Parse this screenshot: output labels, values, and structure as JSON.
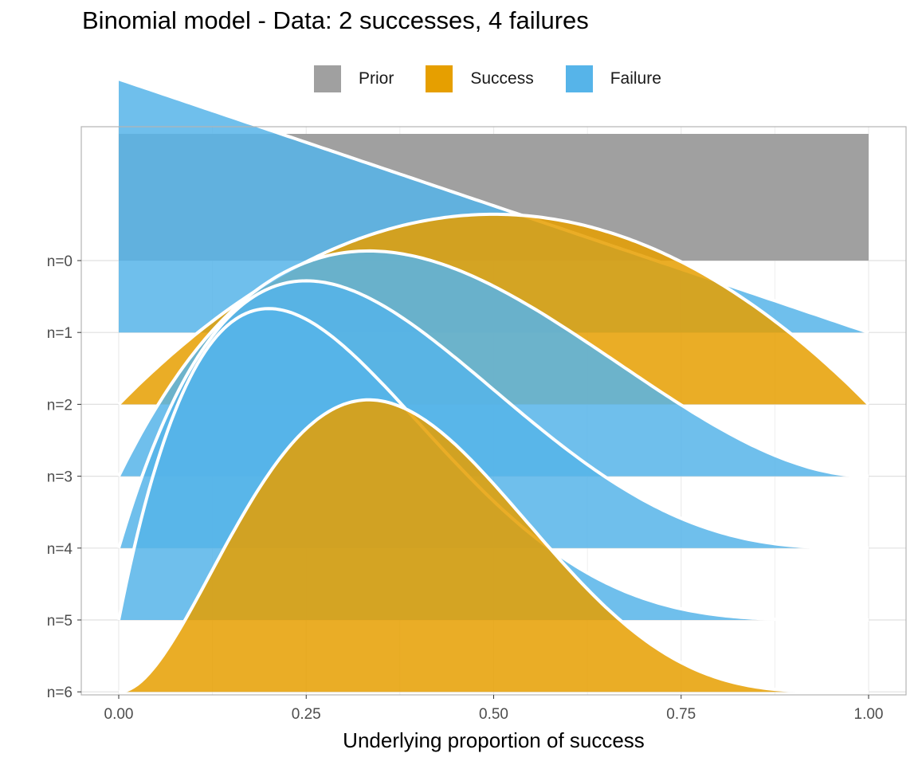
{
  "chart_data": {
    "type": "area",
    "subtype": "ridgeline",
    "title": "Binomial model - Data: 2 successes, 4 failures",
    "xlabel": "Underlying proportion of success",
    "ylabel": "",
    "xlim": [
      0,
      1
    ],
    "x_ticks": [
      "0.00",
      "0.25",
      "0.50",
      "0.75",
      "1.00"
    ],
    "x_tick_values": [
      0,
      0.25,
      0.5,
      0.75,
      1.0
    ],
    "y_categories": [
      "n=0",
      "n=1",
      "n=2",
      "n=3",
      "n=4",
      "n=5",
      "n=6"
    ],
    "legend": {
      "position": "top",
      "entries": [
        {
          "label": "Prior",
          "color": "#a0a0a0"
        },
        {
          "label": "Success",
          "color": "#e69f00"
        },
        {
          "label": "Failure",
          "color": "#56b4e9"
        }
      ]
    },
    "grid": true,
    "series": [
      {
        "row": "n=0",
        "outcome": "Prior",
        "successes": 0,
        "failures": 0,
        "peak_density": 1.0,
        "density_at_x0": 1.0,
        "density_at_x1": 1.0
      },
      {
        "row": "n=1",
        "outcome": "Failure",
        "successes": 0,
        "failures": 1,
        "peak_density": 2.0,
        "mode": 0.0
      },
      {
        "row": "n=2",
        "outcome": "Success",
        "successes": 1,
        "failures": 1,
        "peak_density": 1.5,
        "mode": 0.5
      },
      {
        "row": "n=3",
        "outcome": "Failure",
        "successes": 1,
        "failures": 2,
        "peak_density": 1.78,
        "mode": 0.333
      },
      {
        "row": "n=4",
        "outcome": "Failure",
        "successes": 1,
        "failures": 3,
        "peak_density": 2.11,
        "mode": 0.25
      },
      {
        "row": "n=5",
        "outcome": "Failure",
        "successes": 1,
        "failures": 4,
        "peak_density": 2.46,
        "mode": 0.2
      },
      {
        "row": "n=6",
        "outcome": "Success",
        "successes": 2,
        "failures": 4,
        "peak_density": 2.55,
        "mode": 0.333
      }
    ]
  }
}
